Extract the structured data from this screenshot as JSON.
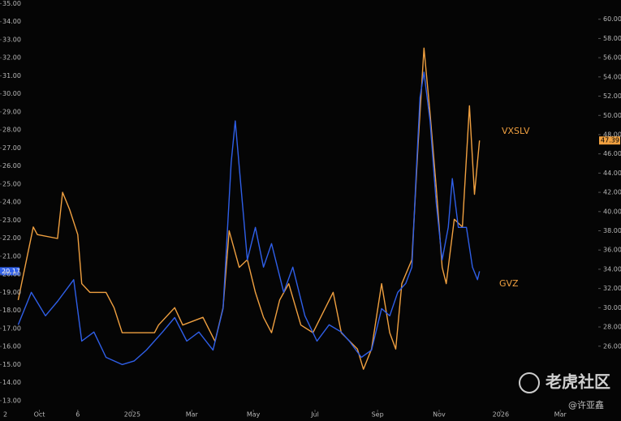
{
  "chart_data": {
    "type": "line",
    "xlim": [
      -9,
      582
    ],
    "xticks": [
      {
        "value": 30,
        "label": "Oct"
      },
      {
        "value": 68,
        "label": "6"
      },
      {
        "value": 122,
        "label": "2025"
      },
      {
        "value": 181,
        "label": "Mar"
      },
      {
        "value": 242,
        "label": "May"
      },
      {
        "value": 303,
        "label": "Jul"
      },
      {
        "value": 365,
        "label": "Sep"
      },
      {
        "value": 426,
        "label": "Nov"
      },
      {
        "value": 487,
        "label": "2026"
      },
      {
        "value": 546,
        "label": "Mar"
      }
    ],
    "ylim": [
      12.5,
      35.2
    ],
    "yticks": [
      {
        "value": 13,
        "label": "13.00"
      },
      {
        "value": 14,
        "label": "14.00"
      },
      {
        "value": 15,
        "label": "15.00"
      },
      {
        "value": 16,
        "label": "16.00"
      },
      {
        "value": 17,
        "label": "17.00"
      },
      {
        "value": 18,
        "label": "18.00"
      },
      {
        "value": 19,
        "label": "19.00"
      },
      {
        "value": 20,
        "label": "20.00"
      },
      {
        "value": 21,
        "label": "21.00"
      },
      {
        "value": 22,
        "label": "22.00"
      },
      {
        "value": 23,
        "label": "23.00"
      },
      {
        "value": 24,
        "label": "24.00"
      },
      {
        "value": 25,
        "label": "25.00"
      },
      {
        "value": 26,
        "label": "26.00"
      },
      {
        "value": 27,
        "label": "27.00"
      },
      {
        "value": 28,
        "label": "28.00"
      },
      {
        "value": 29,
        "label": "29.00"
      },
      {
        "value": 30,
        "label": "30.00"
      },
      {
        "value": 31,
        "label": "31.00"
      },
      {
        "value": 32,
        "label": "32.00"
      },
      {
        "value": 33,
        "label": "33.00"
      },
      {
        "value": 34,
        "label": "34.00"
      },
      {
        "value": 35,
        "label": "35.00"
      }
    ],
    "y2lim": [
      19.4,
      62
    ],
    "y2ticks": [
      {
        "value": 26,
        "label": "26.00"
      },
      {
        "value": 28,
        "label": "28.00"
      },
      {
        "value": 30,
        "label": "30.00"
      },
      {
        "value": 32,
        "label": "32.00"
      },
      {
        "value": 34,
        "label": "34.00"
      },
      {
        "value": 36,
        "label": "36.00"
      },
      {
        "value": 38,
        "label": "38.00"
      },
      {
        "value": 40,
        "label": "40.00"
      },
      {
        "value": 42,
        "label": "42.00"
      },
      {
        "value": 44,
        "label": "44.00"
      },
      {
        "value": 46,
        "label": "46.00"
      },
      {
        "value": 48,
        "label": "48.00"
      },
      {
        "value": 50,
        "label": "50.00"
      },
      {
        "value": 52,
        "label": "52.00"
      },
      {
        "value": 54,
        "label": "54.00"
      },
      {
        "value": 56,
        "label": "56.00"
      },
      {
        "value": 58,
        "label": "58.00"
      },
      {
        "value": 60,
        "label": "60.00"
      }
    ],
    "series": [
      {
        "name": "VXSLV",
        "color": "#f0a040",
        "axis": "y2",
        "x": [
          9,
          24,
          28,
          48,
          53,
          60,
          68,
          72,
          80,
          96,
          104,
          112,
          144,
          148,
          164,
          172,
          192,
          204,
          212,
          218,
          228,
          236,
          244,
          252,
          260,
          268,
          277,
          289,
          301,
          321,
          329,
          345,
          351,
          359,
          369,
          377,
          383,
          389,
          399,
          405,
          409,
          411,
          417,
          423,
          429,
          433,
          441,
          449,
          456,
          461,
          466
        ],
        "values": [
          30.8,
          38.4,
          37.6,
          37.2,
          42,
          40.2,
          37.6,
          32.5,
          31.6,
          31.6,
          30,
          27.4,
          27.4,
          28.2,
          30,
          28.2,
          29,
          26.5,
          30,
          38,
          34.2,
          35,
          31.6,
          29,
          27.4,
          30.8,
          32.5,
          28.2,
          27.4,
          31.6,
          27.4,
          25.7,
          23.6,
          25.7,
          32.5,
          27.4,
          25.7,
          32.5,
          35,
          46.8,
          53.6,
          57,
          50.2,
          42.6,
          34.2,
          32.5,
          39.2,
          38.4,
          51,
          41.8,
          47.39
        ]
      },
      {
        "name": "GVZ",
        "color": "#2f5fe8",
        "axis": "y",
        "x": [
          9,
          22,
          36,
          48,
          64,
          72,
          84,
          96,
          112,
          124,
          136,
          152,
          164,
          176,
          188,
          202,
          212,
          220,
          224,
          231,
          236,
          244,
          252,
          260,
          272,
          281,
          293,
          305,
          317,
          329,
          337,
          349,
          359,
          369,
          377,
          385,
          393,
          399,
          403,
          407,
          411,
          417,
          423,
          429,
          435,
          439,
          445,
          453,
          459,
          464,
          466
        ],
        "values": [
          17.2,
          19,
          17.7,
          18.5,
          19.7,
          16.3,
          16.8,
          15.4,
          15,
          15.2,
          15.8,
          16.8,
          17.6,
          16.3,
          16.8,
          15.8,
          18.1,
          26.2,
          28.5,
          24,
          20.8,
          22.6,
          20.4,
          21.7,
          19,
          20.4,
          17.7,
          16.3,
          17.2,
          16.8,
          16.3,
          15.4,
          15.8,
          18.1,
          17.7,
          19,
          19.5,
          20.4,
          25.3,
          29.8,
          31.2,
          28.5,
          24,
          20.8,
          22.6,
          25.3,
          22.6,
          22.6,
          20.4,
          19.7,
          20.17
        ]
      }
    ],
    "corner_label": "2",
    "watermark": {
      "title": "老虎社区",
      "author": "@许亚鑫"
    }
  }
}
